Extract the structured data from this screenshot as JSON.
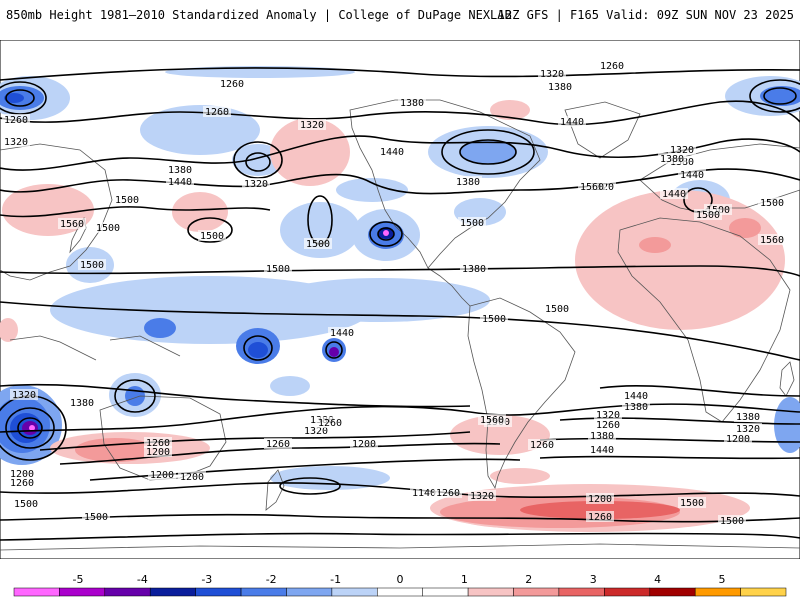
{
  "header": {
    "title": "850mb Height 1981–2010 Standardized Anomaly | College of DuPage NEXLAB",
    "run_info": "12Z GFS | F165 Valid: 09Z SUN NOV 23 2025"
  },
  "colorbar": {
    "ticks": [
      "-5",
      "-4",
      "-3",
      "-2",
      "-1",
      "0",
      "1",
      "2",
      "3",
      "4",
      "5"
    ],
    "colors": [
      "#ff66ff",
      "#aa00cc",
      "#6600aa",
      "#0a1e9c",
      "#1f4fd6",
      "#4a7ce8",
      "#7ea6f0",
      "#bcd3f7",
      "#ffffff",
      "#ffffff",
      "#f7c4c4",
      "#f39a9a",
      "#e86464",
      "#cc2a2a",
      "#a00000",
      "#ff9a00",
      "#ffd24a"
    ]
  },
  "contour_labels": [
    "1260",
    "1260",
    "1320",
    "1380",
    "1440",
    "1260",
    "1320",
    "1260",
    "1320",
    "1380",
    "1440",
    "1320",
    "1380",
    "1320",
    "1380",
    "1440",
    "1380",
    "1440",
    "1320",
    "1380",
    "1440",
    "1500",
    "1560",
    "1500",
    "1560",
    "1500",
    "1500",
    "1500",
    "1500",
    "1500",
    "1500",
    "1500",
    "1380",
    "1500",
    "1500",
    "1440",
    "1380",
    "1320",
    "1260",
    "1200",
    "1500",
    "1440",
    "1380",
    "1320",
    "1260",
    "1200",
    "1200",
    "1260",
    "1200",
    "1260",
    "1320",
    "1380",
    "1200",
    "1140",
    "1260",
    "1320",
    "1200",
    "1260",
    "1320",
    "1380",
    "1380",
    "1440",
    "1500",
    "1260",
    "1200",
    "1500",
    "1260",
    "1500",
    "1500",
    "1560",
    "1560",
    "1500"
  ]
}
